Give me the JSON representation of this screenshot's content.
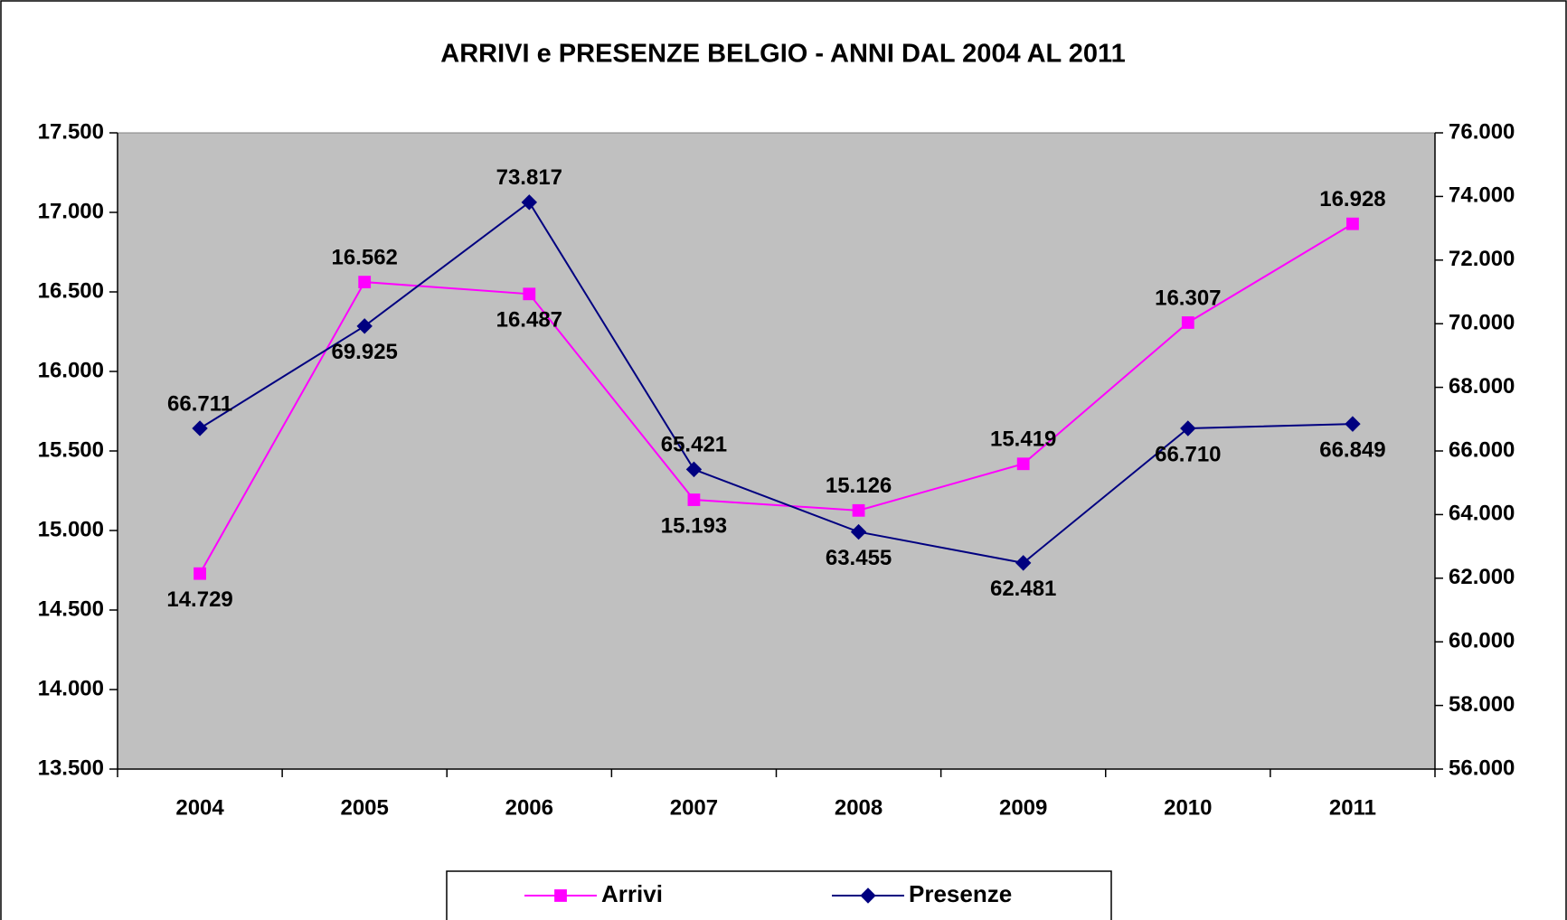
{
  "chart_data": {
    "type": "line",
    "title": "ARRIVI e PRESENZE BELGIO - ANNI DAL 2004 AL 2011",
    "categories": [
      "2004",
      "2005",
      "2006",
      "2007",
      "2008",
      "2009",
      "2010",
      "2011"
    ],
    "series": [
      {
        "name": "Arrivi",
        "color": "#ff00ff",
        "marker": "square",
        "values": [
          14729,
          16562,
          16487,
          15193,
          15126,
          15419,
          16307,
          16928
        ],
        "value_labels": [
          "14.729",
          "16.562",
          "16.487",
          "15.193",
          "15.126",
          "15.419",
          "16.307",
          "16.928"
        ]
      },
      {
        "name": "Presenze",
        "color": "#000080",
        "marker": "diamond",
        "axis": "y2",
        "values": [
          66711,
          69925,
          73817,
          65421,
          63455,
          62481,
          66710,
          66849
        ],
        "value_labels": [
          "66.711",
          "69.925",
          "73.817",
          "65.421",
          "63.455",
          "62.481",
          "66.710",
          "66.849"
        ]
      }
    ],
    "ylim": [
      13500,
      17500
    ],
    "yticks": [
      {
        "value": 13500,
        "label": "13.500"
      },
      {
        "value": 14000,
        "label": "14.000"
      },
      {
        "value": 14500,
        "label": "14.500"
      },
      {
        "value": 15000,
        "label": "15.000"
      },
      {
        "value": 15500,
        "label": "15.500"
      },
      {
        "value": 16000,
        "label": "16.000"
      },
      {
        "value": 16500,
        "label": "16.500"
      },
      {
        "value": 17000,
        "label": "17.000"
      },
      {
        "value": 17500,
        "label": "17.500"
      }
    ],
    "y2lim": [
      56000,
      76000
    ],
    "y2ticks": [
      {
        "value": 56000,
        "label": "56.000"
      },
      {
        "value": 58000,
        "label": "58.000"
      },
      {
        "value": 60000,
        "label": "60.000"
      },
      {
        "value": 62000,
        "label": "62.000"
      },
      {
        "value": 64000,
        "label": "64.000"
      },
      {
        "value": 66000,
        "label": "66.000"
      },
      {
        "value": 68000,
        "label": "68.000"
      },
      {
        "value": 70000,
        "label": "70.000"
      },
      {
        "value": 72000,
        "label": "72.000"
      },
      {
        "value": 74000,
        "label": "74.000"
      },
      {
        "value": 76000,
        "label": "76.000"
      }
    ],
    "legend": "bottom"
  }
}
